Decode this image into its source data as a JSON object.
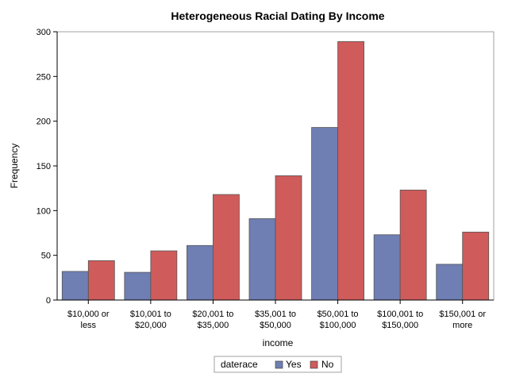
{
  "chart_data": {
    "type": "bar",
    "title": "Heterogeneous Racial Dating By Income",
    "xlabel": "income",
    "ylabel": "Frequency",
    "ylim": [
      0,
      300
    ],
    "yticks": [
      "0",
      "50",
      "100",
      "150",
      "200",
      "250",
      "300"
    ],
    "grid": false,
    "legend_title": "daterace",
    "legend_position": "bottom-center",
    "categories": [
      [
        "$10,000 or",
        "less"
      ],
      [
        "$10,001 to",
        "$20,000"
      ],
      [
        "$20,001 to",
        "$35,000"
      ],
      [
        "$35,001 to",
        "$50,000"
      ],
      [
        "$50,001 to",
        "$100,000"
      ],
      [
        "$100,001 to",
        "$150,000"
      ],
      [
        "$150,001 or",
        "more"
      ]
    ],
    "series": [
      {
        "name": "Yes",
        "color": "#6F7EB3",
        "values": [
          32,
          31,
          61,
          91,
          193,
          73,
          40
        ]
      },
      {
        "name": "No",
        "color": "#D05B5B",
        "values": [
          44,
          55,
          118,
          139,
          289,
          123,
          76
        ]
      }
    ]
  }
}
